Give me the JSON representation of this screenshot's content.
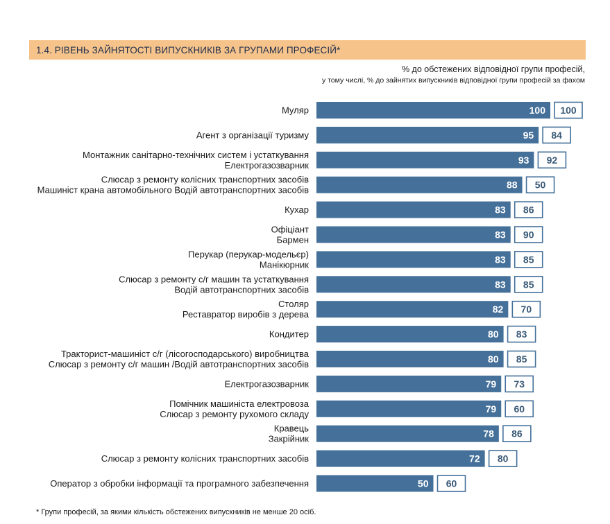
{
  "header": {
    "title": "1.4. РІВЕНЬ ЗАЙНЯТОСТІ ВИПУСКНИКІВ ЗА ГРУПАМИ ПРОФЕСІЙ*",
    "subtitle_line1": "% до обстежених відповідної групи професій,",
    "subtitle_line2": "у тому числі, % до зайнятих випускників відповідної групи професій за фахом"
  },
  "footnote": "* Групи професій, за якими кількість обстежених випускників не менше 20 осіб.",
  "colors": {
    "title_bg": "#f6c48a",
    "bar": "#44709a",
    "box_border": "#44709a",
    "box_text": "#3a5a78"
  },
  "chart_data": {
    "type": "bar",
    "orientation": "horizontal",
    "xlim": [
      0,
      100
    ],
    "categories": [
      [
        "Муляр"
      ],
      [
        "Агент з організації туризму"
      ],
      [
        "Монтажник санітарно-технічних систем і устаткування",
        "Електрогазозварник"
      ],
      [
        "Слюсар з ремонту колісних транспортних засобів",
        "Машиніст крана автомобільного Водій автотранспортних засобів"
      ],
      [
        "Кухар"
      ],
      [
        "Офіціант",
        "Бармен"
      ],
      [
        "Перукар (перукар-модельєр)",
        "Манікюрник"
      ],
      [
        "Слюсар з ремонту с/г машин та устаткування",
        "Водій автотранспортних засобів"
      ],
      [
        "Столяр",
        "Реставратор виробів з дерева"
      ],
      [
        "Кондитер"
      ],
      [
        "Тракторист-машиніст с/г (лісогосподарського) виробництва",
        "Слюсар з ремонту с/г машин /Водій автотранспортних засобів"
      ],
      [
        "Електрогазозварник"
      ],
      [
        "Помічник машиніста електровоза",
        "Слюсар з ремонту рухомого складу"
      ],
      [
        "Кравець",
        "Закрійник"
      ],
      [
        "Слюсар з ремонту колісних транспортних засобів"
      ],
      [
        "Оператор з обробки інформації та програмного забезпечення"
      ]
    ],
    "series": [
      {
        "values": [
          100,
          95,
          93,
          88,
          83,
          83,
          83,
          83,
          82,
          80,
          80,
          79,
          79,
          78,
          72,
          50
        ]
      },
      {
        "values": [
          100,
          84,
          92,
          50,
          86,
          90,
          85,
          85,
          70,
          83,
          85,
          73,
          60,
          86,
          80,
          60
        ]
      }
    ]
  }
}
